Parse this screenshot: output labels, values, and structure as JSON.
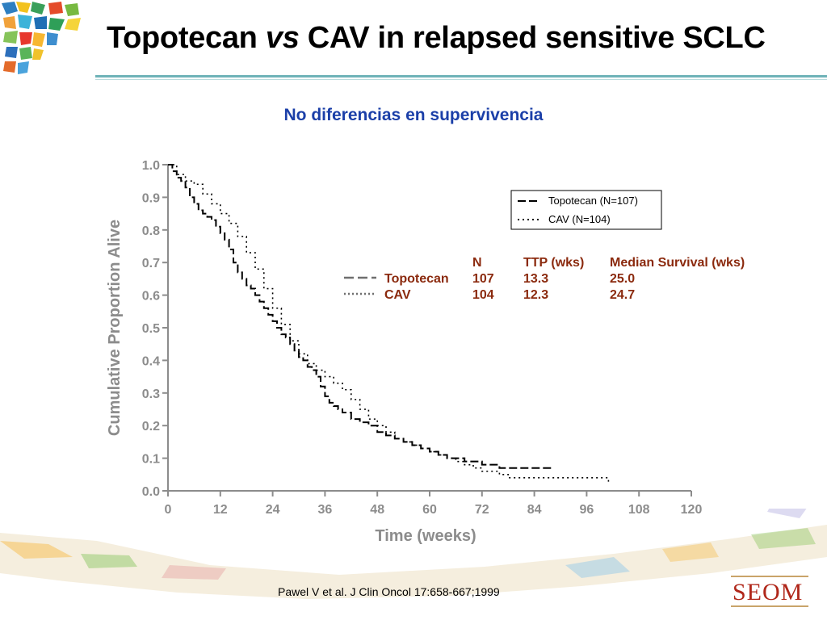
{
  "header": {
    "title_pre": "Topotecan ",
    "title_em": "vs",
    "title_post": " CAV in relapsed sensitive SCLC"
  },
  "subtitle": "No diferencias en supervivencia",
  "chart_data": {
    "type": "line",
    "title": "",
    "xlabel": "Time (weeks)",
    "ylabel": "Cumulative Proportion Alive",
    "xlim": [
      0,
      120
    ],
    "ylim": [
      0,
      1.0
    ],
    "xticks": [
      0,
      12,
      24,
      36,
      48,
      60,
      72,
      84,
      96,
      108,
      120
    ],
    "yticks": [
      "0.0",
      "0.1",
      "0.2",
      "0.3",
      "0.4",
      "0.5",
      "0.6",
      "0.7",
      "0.8",
      "0.9",
      "1.0"
    ],
    "legend_placement": "top-right",
    "series": [
      {
        "name": "Topotecan (N=107)",
        "style": "dashed",
        "color": "#000000",
        "x": [
          0,
          1,
          2,
          3,
          4,
          5,
          6,
          7,
          8,
          9,
          10,
          11,
          12,
          13,
          14,
          15,
          16,
          17,
          18,
          19,
          20,
          21,
          22,
          23,
          24,
          25,
          26,
          27,
          28,
          29,
          30,
          31,
          32,
          33,
          34,
          35,
          36,
          37,
          38,
          39,
          40,
          42,
          44,
          46,
          48,
          50,
          52,
          54,
          56,
          58,
          60,
          62,
          64,
          66,
          68,
          70,
          72,
          74,
          76,
          78,
          80,
          82,
          84,
          88
        ],
        "y": [
          1.0,
          0.98,
          0.96,
          0.95,
          0.93,
          0.9,
          0.88,
          0.86,
          0.85,
          0.84,
          0.83,
          0.81,
          0.79,
          0.77,
          0.74,
          0.7,
          0.67,
          0.65,
          0.63,
          0.62,
          0.6,
          0.58,
          0.56,
          0.54,
          0.52,
          0.5,
          0.48,
          0.47,
          0.45,
          0.43,
          0.41,
          0.4,
          0.38,
          0.37,
          0.35,
          0.32,
          0.29,
          0.27,
          0.26,
          0.25,
          0.24,
          0.22,
          0.21,
          0.2,
          0.18,
          0.17,
          0.16,
          0.15,
          0.14,
          0.13,
          0.12,
          0.11,
          0.1,
          0.1,
          0.09,
          0.09,
          0.08,
          0.08,
          0.07,
          0.07,
          0.07,
          0.07,
          0.07,
          0.07
        ]
      },
      {
        "name": "CAV (N=104)",
        "style": "dotted",
        "color": "#000000",
        "x": [
          0,
          2,
          4,
          6,
          8,
          10,
          12,
          14,
          16,
          18,
          20,
          22,
          24,
          26,
          28,
          30,
          32,
          34,
          36,
          38,
          40,
          42,
          44,
          46,
          48,
          50,
          52,
          54,
          56,
          58,
          60,
          62,
          64,
          66,
          68,
          70,
          72,
          74,
          76,
          78,
          80,
          84,
          88,
          92,
          96,
          100,
          101
        ],
        "y": [
          1.0,
          0.97,
          0.95,
          0.94,
          0.91,
          0.88,
          0.85,
          0.82,
          0.78,
          0.73,
          0.68,
          0.62,
          0.56,
          0.51,
          0.46,
          0.42,
          0.39,
          0.37,
          0.35,
          0.33,
          0.31,
          0.28,
          0.25,
          0.22,
          0.2,
          0.18,
          0.16,
          0.15,
          0.14,
          0.13,
          0.12,
          0.11,
          0.1,
          0.09,
          0.08,
          0.07,
          0.06,
          0.06,
          0.05,
          0.04,
          0.04,
          0.04,
          0.04,
          0.04,
          0.04,
          0.04,
          0.02
        ]
      }
    ],
    "table": {
      "headers": [
        "",
        "N",
        "TTP (wks)",
        "Median Survival (wks)"
      ],
      "rows": [
        {
          "label": "Topotecan",
          "style": "dashed",
          "n": "107",
          "ttp": "13.3",
          "median": "25.0"
        },
        {
          "label": "CAV",
          "style": "dotted",
          "n": "104",
          "ttp": "12.3",
          "median": "24.7"
        }
      ],
      "color": "#8b2a0e"
    }
  },
  "footer": {
    "citation": "Pawel V et al. J Clin Oncol 17:658-667;1999",
    "brand": "SEOM"
  },
  "colors": {
    "subtitle": "#1b3fa8",
    "axis_label": "#8c8c8c",
    "table_text": "#8b2a0e",
    "brand": "#b0271a"
  }
}
